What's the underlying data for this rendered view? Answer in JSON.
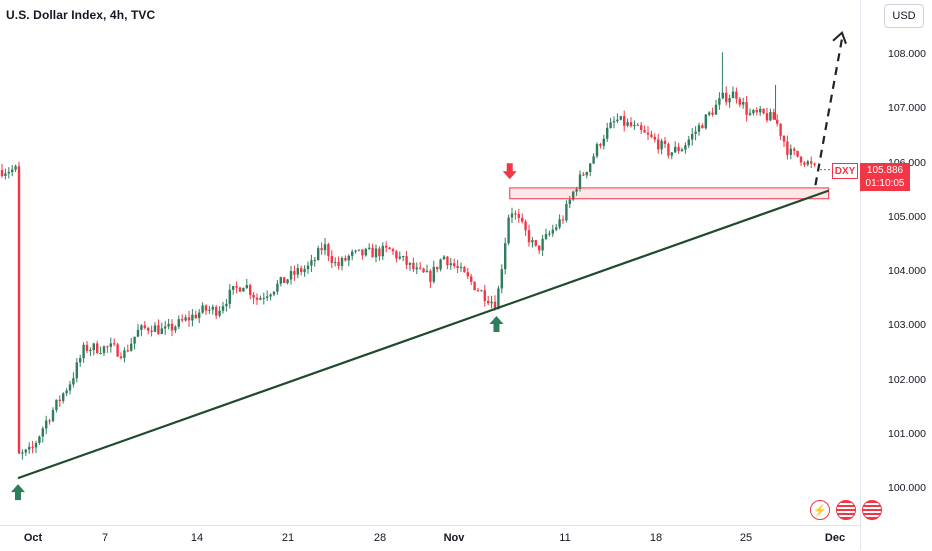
{
  "header": {
    "title": "U.S. Dollar Index, 4h, TVC",
    "currency_button": "USD"
  },
  "price_label": {
    "symbol": "DXY",
    "price": "105.886",
    "countdown": "01:10:05"
  },
  "colors": {
    "up": "#2e7d5b",
    "down": "#f23645",
    "trendline": "#1f4a2c",
    "zone": "#f23645"
  },
  "icons": [
    "flash-icon",
    "us-flag-icon",
    "us-flag-icon"
  ],
  "chart_data": {
    "type": "candlestick",
    "y_ticks": [
      "108.000",
      "107.000",
      "106.000",
      "105.000",
      "104.000",
      "103.000",
      "102.000",
      "101.000",
      "100.000"
    ],
    "x_ticks": [
      {
        "label": "Oct",
        "bold": true
      },
      {
        "label": "7",
        "bold": false
      },
      {
        "label": "14",
        "bold": false
      },
      {
        "label": "21",
        "bold": false
      },
      {
        "label": "28",
        "bold": false
      },
      {
        "label": "Nov",
        "bold": true
      },
      {
        "label": "11",
        "bold": false
      },
      {
        "label": "18",
        "bold": false
      },
      {
        "label": "25",
        "bold": false
      },
      {
        "label": "Dec",
        "bold": true
      }
    ],
    "ylim": [
      99.4,
      108.7
    ],
    "xlim": [
      "2024-09-30",
      "2024-12-01"
    ],
    "series_path": [
      [
        "2024-09-30",
        100.6
      ],
      [
        "2024-10-01",
        100.7
      ],
      [
        "2024-10-02",
        101.2
      ],
      [
        "2024-10-03",
        101.6
      ],
      [
        "2024-10-04",
        102.0
      ],
      [
        "2024-10-05",
        102.6
      ],
      [
        "2024-10-07",
        102.6
      ],
      [
        "2024-10-08",
        102.5
      ],
      [
        "2024-10-09",
        102.9
      ],
      [
        "2024-10-10",
        103.0
      ],
      [
        "2024-10-11",
        102.9
      ],
      [
        "2024-10-14",
        103.3
      ],
      [
        "2024-10-15",
        103.3
      ],
      [
        "2024-10-16",
        103.6
      ],
      [
        "2024-10-17",
        103.8
      ],
      [
        "2024-10-18",
        103.5
      ],
      [
        "2024-10-21",
        104.0
      ],
      [
        "2024-10-22",
        104.1
      ],
      [
        "2024-10-23",
        104.5
      ],
      [
        "2024-10-24",
        104.1
      ],
      [
        "2024-10-25",
        104.3
      ],
      [
        "2024-10-28",
        104.4
      ],
      [
        "2024-10-29",
        104.2
      ],
      [
        "2024-10-30",
        104.0
      ],
      [
        "2024-10-31",
        103.9
      ],
      [
        "2024-11-01",
        104.3
      ],
      [
        "2024-11-04",
        103.6
      ],
      [
        "2024-11-05",
        103.4
      ],
      [
        "2024-11-06",
        105.2
      ],
      [
        "2024-11-07",
        104.8
      ],
      [
        "2024-11-08",
        104.4
      ],
      [
        "2024-11-10",
        105.0
      ],
      [
        "2024-11-11",
        105.6
      ],
      [
        "2024-11-12",
        106.0
      ],
      [
        "2024-11-13",
        106.5
      ],
      [
        "2024-11-14",
        106.8
      ],
      [
        "2024-11-15",
        106.7
      ],
      [
        "2024-11-17",
        106.4
      ],
      [
        "2024-11-18",
        106.2
      ],
      [
        "2024-11-19",
        106.3
      ],
      [
        "2024-11-20",
        106.6
      ],
      [
        "2024-11-21",
        106.9
      ],
      [
        "2024-11-22",
        107.2
      ],
      [
        "2024-11-23",
        107.3
      ],
      [
        "2024-11-24",
        106.9
      ],
      [
        "2024-11-25",
        106.9
      ],
      [
        "2024-11-26",
        106.8
      ],
      [
        "2024-11-27",
        106.2
      ],
      [
        "2024-11-28",
        106.1
      ],
      [
        "2024-11-29",
        105.88
      ]
    ],
    "spikes": [
      [
        "2024-11-22",
        108.05
      ],
      [
        "2024-11-26",
        107.45
      ]
    ],
    "trendline": [
      [
        "2024-09-30",
        100.2
      ],
      [
        "2024-11-30",
        105.5
      ]
    ],
    "resistance_zone": {
      "from": "2024-11-06",
      "to": "2024-11-30",
      "low": 105.35,
      "high": 105.55
    },
    "projection": [
      [
        "2024-11-29",
        105.6
      ],
      [
        "2024-12-01",
        108.3
      ]
    ],
    "markers": [
      {
        "date": "2024-09-30",
        "value": 100.2,
        "dir": "up",
        "color": "#2e7d5b"
      },
      {
        "date": "2024-11-05",
        "value": 103.3,
        "dir": "up",
        "color": "#2e7d5b"
      },
      {
        "date": "2024-11-06",
        "value": 105.6,
        "dir": "down",
        "color": "#f23645"
      }
    ],
    "last_price": 105.886
  }
}
